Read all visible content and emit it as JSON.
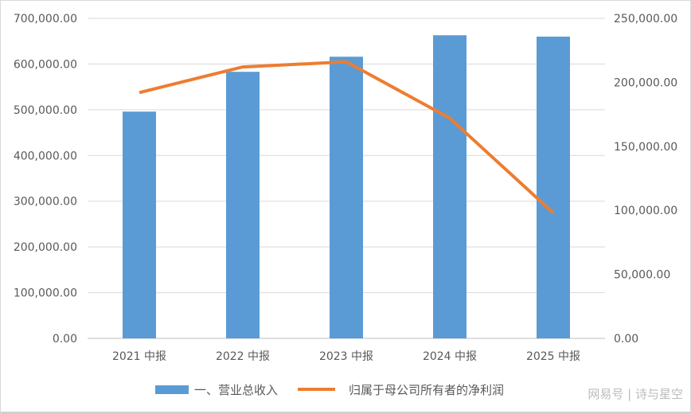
{
  "chart_data": {
    "type": "bar+line",
    "categories": [
      "2021 中报",
      "2022 中报",
      "2023 中报",
      "2024 中报",
      "2025 中报"
    ],
    "series": [
      {
        "name": "一、营业总收入",
        "type": "bar",
        "axis": "left",
        "color": "#5B9BD5",
        "values": [
          496000,
          583000,
          616000,
          663000,
          660000
        ]
      },
      {
        "name": "归属于母公司所有者的净利润",
        "type": "line",
        "axis": "right",
        "color": "#ED7D31",
        "values": [
          192000,
          212000,
          216000,
          172000,
          98000
        ]
      }
    ],
    "left_axis": {
      "ylim": [
        0,
        700000
      ],
      "ticks": [
        "0.00",
        "100,000.00",
        "200,000.00",
        "300,000.00",
        "400,000.00",
        "500,000.00",
        "600,000.00",
        "700,000.00"
      ]
    },
    "right_axis": {
      "ylim": [
        0,
        250000
      ],
      "ticks": [
        "0.00",
        "50,000.00",
        "100,000.00",
        "150,000.00",
        "200,000.00",
        "250,000.00"
      ]
    },
    "grid": true,
    "legend": "bottom"
  },
  "watermark": "网易号 | 诗与星空"
}
